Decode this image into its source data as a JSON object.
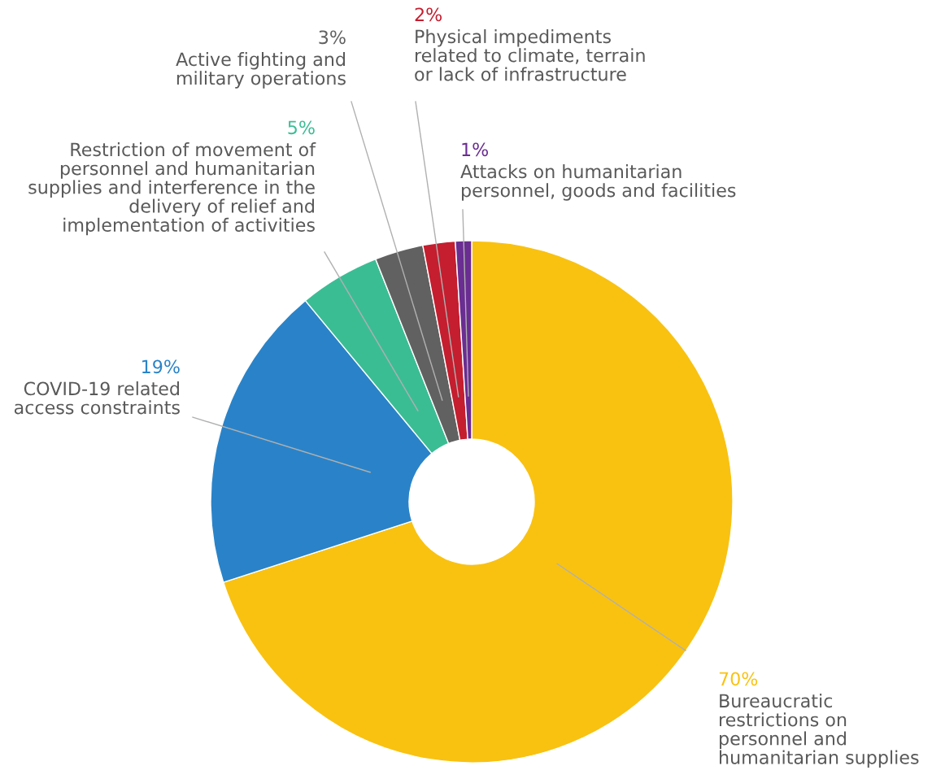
{
  "chart_data": {
    "type": "donut",
    "categories": [
      "Bureaucratic\nrestrictions on\npersonnel and\nhumanitarian supplies",
      "COVID-19 related\naccess constraints",
      "Restriction of movement of\npersonnel and humanitarian\nsupplies and interference in the\ndelivery of relief and\nimplementation of activities",
      "Active fighting and\nmilitary operations",
      "Physical impediments\nrelated to climate, terrain\nor lack of infrastructure",
      "Attacks on humanitarian\npersonnel, goods and facilities"
    ],
    "values": [
      70,
      19,
      5,
      3,
      2,
      1
    ],
    "colors": [
      "#f9c211",
      "#2a83c8",
      "#3bbd94",
      "#616161",
      "#c41e2f",
      "#6a2d91"
    ],
    "value_labels": [
      "70%",
      "19%",
      "5%",
      "3%",
      "2%",
      "1%"
    ]
  }
}
